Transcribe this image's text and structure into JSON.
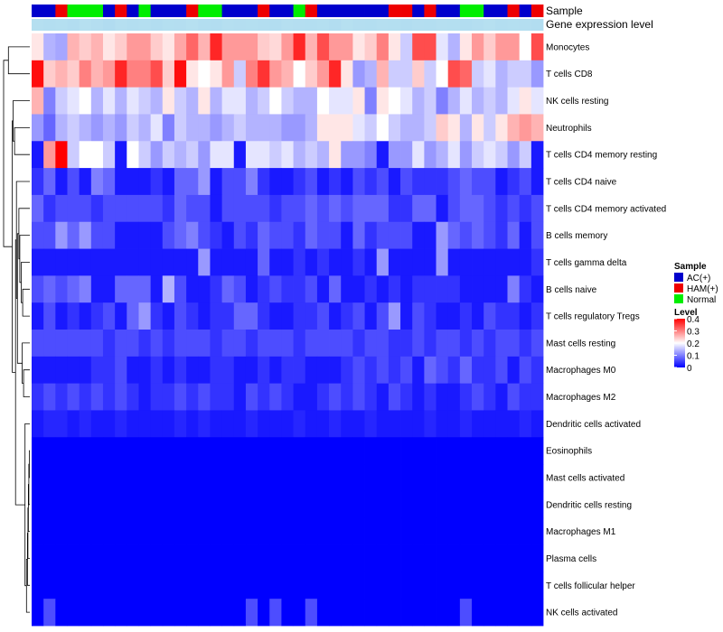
{
  "chart_data": {
    "type": "heatmap",
    "title": "",
    "annotations": {
      "sample_label": "Sample",
      "gene_expression_label": "Gene expression level",
      "sample_groups": [
        "AC",
        "AC",
        "HAM",
        "Normal",
        "Normal",
        "Normal",
        "AC",
        "HAM",
        "AC",
        "Normal",
        "AC",
        "AC",
        "AC",
        "HAM",
        "Normal",
        "Normal",
        "AC",
        "AC",
        "AC",
        "HAM",
        "AC",
        "AC",
        "Normal",
        "HAM",
        "AC",
        "AC",
        "AC",
        "AC",
        "AC",
        "AC",
        "HAM",
        "HAM",
        "AC",
        "HAM",
        "AC",
        "AC",
        "Normal",
        "Normal",
        "AC",
        "AC",
        "HAM",
        "AC",
        "HAM"
      ]
    },
    "legend": {
      "sample_title": "Sample",
      "sample_entries": [
        {
          "label": "AC(+)",
          "color": "#0000cc"
        },
        {
          "label": "HAM(+)",
          "color": "#ee0000"
        },
        {
          "label": "Normal",
          "color": "#00ee00"
        }
      ],
      "level_title": "Level",
      "level_ticks": [
        "0.4",
        "0.3",
        "0.2",
        "0.1",
        "0"
      ],
      "level_range": [
        0,
        0.4
      ],
      "colors": {
        "low": "#0000ff",
        "mid": "#ffffff",
        "high": "#ff0000"
      }
    },
    "rows": [
      "Monocytes",
      "T cells CD8",
      "NK cells resting",
      "Neutrophils",
      "T cells CD4 memory resting",
      "T cells CD4 naive",
      "T cells CD4 memory activated",
      "B cells memory",
      "T cells gamma delta",
      "B cells naive",
      "T cells regulatory  Tregs",
      "Mast cells resting",
      "Macrophages M0",
      "Macrophages M2",
      "Dendritic cells activated",
      "Eosinophils",
      "Mast cells activated",
      "Dendritic cells resting",
      "Macrophages M1",
      "Plasma cells",
      "T cells follicular helper",
      "NK cells activated"
    ],
    "values": [
      [
        0.22,
        0.14,
        0.13,
        0.26,
        0.24,
        0.26,
        0.22,
        0.24,
        0.28,
        0.28,
        0.24,
        0.22,
        0.27,
        0.32,
        0.26,
        0.37,
        0.28,
        0.28,
        0.28,
        0.24,
        0.23,
        0.28,
        0.37,
        0.26,
        0.34,
        0.28,
        0.28,
        0.22,
        0.24,
        0.3,
        0.22,
        0.16,
        0.34,
        0.34,
        0.18,
        0.14,
        0.22,
        0.28,
        0.24,
        0.28,
        0.28,
        0.2,
        0.34
      ],
      [
        0.39,
        0.24,
        0.26,
        0.24,
        0.3,
        0.26,
        0.28,
        0.37,
        0.3,
        0.3,
        0.34,
        0.24,
        0.39,
        0.22,
        0.2,
        0.22,
        0.28,
        0.16,
        0.3,
        0.36,
        0.28,
        0.26,
        0.2,
        0.24,
        0.28,
        0.37,
        0.22,
        0.12,
        0.14,
        0.26,
        0.16,
        0.16,
        0.24,
        0.16,
        0.2,
        0.34,
        0.32,
        0.16,
        0.18,
        0.14,
        0.16,
        0.16,
        0.12
      ],
      [
        0.26,
        0.1,
        0.16,
        0.18,
        0.2,
        0.14,
        0.18,
        0.14,
        0.18,
        0.16,
        0.14,
        0.22,
        0.16,
        0.14,
        0.22,
        0.14,
        0.18,
        0.18,
        0.14,
        0.16,
        0.2,
        0.16,
        0.14,
        0.14,
        0.2,
        0.18,
        0.18,
        0.22,
        0.1,
        0.22,
        0.2,
        0.18,
        0.14,
        0.16,
        0.1,
        0.14,
        0.18,
        0.14,
        0.16,
        0.14,
        0.18,
        0.22,
        0.18
      ],
      [
        0.12,
        0.08,
        0.14,
        0.16,
        0.14,
        0.12,
        0.14,
        0.12,
        0.16,
        0.14,
        0.18,
        0.1,
        0.16,
        0.14,
        0.14,
        0.12,
        0.14,
        0.16,
        0.14,
        0.14,
        0.14,
        0.12,
        0.12,
        0.14,
        0.22,
        0.22,
        0.22,
        0.18,
        0.16,
        0.2,
        0.16,
        0.14,
        0.14,
        0.16,
        0.24,
        0.22,
        0.14,
        0.22,
        0.16,
        0.22,
        0.26,
        0.28,
        0.26
      ],
      [
        0.02,
        0.28,
        0.4,
        0.16,
        0.2,
        0.2,
        0.16,
        0.02,
        0.2,
        0.16,
        0.12,
        0.16,
        0.14,
        0.16,
        0.12,
        0.18,
        0.18,
        0.02,
        0.18,
        0.18,
        0.16,
        0.18,
        0.14,
        0.16,
        0.14,
        0.22,
        0.12,
        0.12,
        0.1,
        0.02,
        0.12,
        0.12,
        0.18,
        0.12,
        0.14,
        0.18,
        0.12,
        0.16,
        0.18,
        0.16,
        0.12,
        0.16,
        0.02
      ],
      [
        0.04,
        0.08,
        0.02,
        0.06,
        0.02,
        0.1,
        0.08,
        0.02,
        0.02,
        0.02,
        0.04,
        0.02,
        0.08,
        0.08,
        0.12,
        0.02,
        0.06,
        0.06,
        0.1,
        0.04,
        0.02,
        0.02,
        0.04,
        0.06,
        0.02,
        0.04,
        0.02,
        0.06,
        0.04,
        0.06,
        0.02,
        0.06,
        0.04,
        0.04,
        0.04,
        0.06,
        0.08,
        0.06,
        0.06,
        0.02,
        0.04,
        0.06,
        0.02
      ],
      [
        0.08,
        0.04,
        0.06,
        0.06,
        0.06,
        0.04,
        0.06,
        0.06,
        0.06,
        0.06,
        0.06,
        0.04,
        0.08,
        0.06,
        0.06,
        0.02,
        0.06,
        0.06,
        0.06,
        0.06,
        0.04,
        0.06,
        0.06,
        0.08,
        0.06,
        0.08,
        0.06,
        0.08,
        0.08,
        0.08,
        0.04,
        0.04,
        0.08,
        0.08,
        0.02,
        0.06,
        0.08,
        0.08,
        0.06,
        0.04,
        0.06,
        0.04,
        0.06
      ],
      [
        0.06,
        0.06,
        0.12,
        0.08,
        0.12,
        0.06,
        0.06,
        0.02,
        0.02,
        0.02,
        0.02,
        0.06,
        0.08,
        0.1,
        0.06,
        0.04,
        0.02,
        0.06,
        0.04,
        0.08,
        0.06,
        0.06,
        0.04,
        0.08,
        0.06,
        0.06,
        0.02,
        0.08,
        0.04,
        0.06,
        0.06,
        0.06,
        0.02,
        0.02,
        0.12,
        0.08,
        0.06,
        0.08,
        0.06,
        0.04,
        0.08,
        0.02,
        0.06
      ],
      [
        0.02,
        0.02,
        0.02,
        0.02,
        0.02,
        0.02,
        0.02,
        0.02,
        0.02,
        0.02,
        0.02,
        0.02,
        0.02,
        0.02,
        0.12,
        0.02,
        0.02,
        0.02,
        0.02,
        0.08,
        0.02,
        0.02,
        0.04,
        0.02,
        0.04,
        0.02,
        0.02,
        0.04,
        0.02,
        0.12,
        0.02,
        0.02,
        0.02,
        0.02,
        0.12,
        0.02,
        0.02,
        0.02,
        0.02,
        0.02,
        0.02,
        0.02,
        0.04
      ],
      [
        0.06,
        0.08,
        0.06,
        0.08,
        0.1,
        0.02,
        0.02,
        0.08,
        0.08,
        0.08,
        0.02,
        0.14,
        0.06,
        0.02,
        0.02,
        0.04,
        0.08,
        0.06,
        0.02,
        0.04,
        0.06,
        0.04,
        0.04,
        0.06,
        0.02,
        0.08,
        0.02,
        0.02,
        0.04,
        0.02,
        0.04,
        0.02,
        0.04,
        0.04,
        0.04,
        0.04,
        0.02,
        0.02,
        0.02,
        0.02,
        0.1,
        0.04,
        0.02
      ],
      [
        0.02,
        0.06,
        0.02,
        0.04,
        0.02,
        0.04,
        0.06,
        0.02,
        0.08,
        0.12,
        0.04,
        0.02,
        0.06,
        0.04,
        0.02,
        0.04,
        0.04,
        0.08,
        0.08,
        0.04,
        0.02,
        0.02,
        0.04,
        0.04,
        0.06,
        0.02,
        0.04,
        0.06,
        0.02,
        0.06,
        0.12,
        0.02,
        0.06,
        0.04,
        0.02,
        0.02,
        0.04,
        0.02,
        0.06,
        0.04,
        0.04,
        0.02,
        0.04
      ],
      [
        0.06,
        0.06,
        0.06,
        0.06,
        0.06,
        0.06,
        0.04,
        0.06,
        0.06,
        0.04,
        0.06,
        0.04,
        0.06,
        0.06,
        0.06,
        0.04,
        0.06,
        0.06,
        0.04,
        0.06,
        0.06,
        0.06,
        0.04,
        0.06,
        0.06,
        0.06,
        0.06,
        0.04,
        0.06,
        0.06,
        0.04,
        0.04,
        0.06,
        0.04,
        0.06,
        0.06,
        0.04,
        0.06,
        0.04,
        0.06,
        0.06,
        0.04,
        0.06
      ],
      [
        0.02,
        0.02,
        0.02,
        0.02,
        0.02,
        0.04,
        0.04,
        0.06,
        0.02,
        0.02,
        0.04,
        0.02,
        0.04,
        0.02,
        0.02,
        0.04,
        0.04,
        0.02,
        0.02,
        0.04,
        0.02,
        0.04,
        0.04,
        0.02,
        0.02,
        0.02,
        0.04,
        0.06,
        0.04,
        0.06,
        0.04,
        0.06,
        0.02,
        0.08,
        0.06,
        0.04,
        0.08,
        0.04,
        0.04,
        0.06,
        0.02,
        0.06,
        0.04
      ],
      [
        0.04,
        0.06,
        0.04,
        0.06,
        0.04,
        0.06,
        0.04,
        0.06,
        0.04,
        0.02,
        0.04,
        0.04,
        0.06,
        0.04,
        0.06,
        0.04,
        0.04,
        0.02,
        0.06,
        0.04,
        0.06,
        0.04,
        0.02,
        0.02,
        0.04,
        0.06,
        0.04,
        0.06,
        0.04,
        0.02,
        0.06,
        0.04,
        0.02,
        0.04,
        0.02,
        0.02,
        0.04,
        0.06,
        0.04,
        0.02,
        0.06,
        0.04,
        0.04
      ],
      [
        0.02,
        0.03,
        0.03,
        0.02,
        0.03,
        0.02,
        0.02,
        0.03,
        0.02,
        0.02,
        0.02,
        0.02,
        0.03,
        0.02,
        0.03,
        0.02,
        0.02,
        0.02,
        0.03,
        0.02,
        0.02,
        0.02,
        0.03,
        0.02,
        0.02,
        0.03,
        0.02,
        0.02,
        0.03,
        0.02,
        0.02,
        0.02,
        0.02,
        0.03,
        0.02,
        0.02,
        0.03,
        0.02,
        0.02,
        0.02,
        0.02,
        0.03,
        0.02
      ],
      [
        0,
        0,
        0,
        0,
        0,
        0,
        0,
        0,
        0,
        0,
        0,
        0,
        0,
        0,
        0,
        0,
        0,
        0,
        0,
        0,
        0,
        0,
        0,
        0,
        0,
        0,
        0,
        0,
        0,
        0,
        0,
        0,
        0,
        0,
        0,
        0,
        0,
        0,
        0,
        0,
        0,
        0,
        0
      ],
      [
        0,
        0,
        0,
        0,
        0,
        0,
        0,
        0,
        0,
        0,
        0,
        0,
        0,
        0,
        0,
        0,
        0,
        0,
        0,
        0,
        0,
        0,
        0,
        0,
        0,
        0,
        0,
        0,
        0,
        0,
        0,
        0,
        0,
        0,
        0,
        0,
        0,
        0,
        0,
        0,
        0,
        0,
        0
      ],
      [
        0,
        0,
        0,
        0,
        0,
        0,
        0,
        0,
        0,
        0,
        0,
        0,
        0,
        0,
        0,
        0,
        0,
        0,
        0,
        0,
        0,
        0,
        0,
        0,
        0,
        0,
        0,
        0,
        0,
        0,
        0,
        0,
        0,
        0,
        0,
        0,
        0,
        0,
        0,
        0,
        0,
        0,
        0
      ],
      [
        0,
        0,
        0,
        0,
        0,
        0,
        0,
        0,
        0,
        0,
        0,
        0,
        0,
        0,
        0,
        0,
        0,
        0,
        0,
        0,
        0,
        0,
        0,
        0,
        0,
        0,
        0,
        0,
        0,
        0,
        0,
        0,
        0,
        0,
        0,
        0,
        0,
        0,
        0,
        0,
        0,
        0,
        0
      ],
      [
        0,
        0,
        0,
        0,
        0,
        0,
        0,
        0,
        0,
        0,
        0,
        0,
        0,
        0,
        0,
        0,
        0,
        0,
        0,
        0,
        0,
        0,
        0,
        0,
        0,
        0,
        0,
        0,
        0,
        0,
        0,
        0,
        0,
        0,
        0,
        0,
        0,
        0,
        0,
        0,
        0,
        0,
        0
      ],
      [
        0,
        0,
        0,
        0,
        0,
        0,
        0,
        0,
        0,
        0,
        0,
        0,
        0,
        0,
        0,
        0,
        0,
        0,
        0,
        0,
        0,
        0,
        0,
        0,
        0,
        0,
        0,
        0,
        0,
        0,
        0,
        0,
        0,
        0,
        0,
        0,
        0,
        0,
        0,
        0,
        0,
        0,
        0
      ],
      [
        0,
        0.06,
        0,
        0,
        0,
        0,
        0,
        0,
        0,
        0,
        0,
        0,
        0,
        0,
        0,
        0,
        0,
        0,
        0.06,
        0,
        0.06,
        0,
        0,
        0.06,
        0,
        0,
        0,
        0,
        0,
        0,
        0,
        0,
        0,
        0,
        0,
        0,
        0.06,
        0,
        0,
        0,
        0,
        0,
        0
      ]
    ],
    "gene_expression_levels": [
      0.78,
      0.72,
      0.76,
      0.7,
      0.8,
      0.74,
      0.68,
      0.78,
      0.72,
      0.75,
      0.7,
      0.76,
      0.74,
      0.8,
      0.72,
      0.7,
      0.78,
      0.74,
      0.76,
      0.72,
      0.7,
      0.78,
      0.74,
      0.72,
      0.76,
      0.7,
      0.8,
      0.74,
      0.72,
      0.78,
      0.76,
      0.7,
      0.74,
      0.72,
      0.78,
      0.76,
      0.7,
      0.74,
      0.8,
      0.72,
      0.76,
      0.74,
      0.7
    ],
    "row_dendrogram": {
      "merges": [
        [
          -16,
          -17
        ],
        [
          -18,
          1
        ],
        [
          -19,
          2
        ],
        [
          -20,
          3
        ],
        [
          -21,
          4
        ],
        [
          -22,
          5
        ],
        [
          -15,
          6
        ],
        [
          -13,
          -14
        ],
        [
          -12,
          8
        ],
        [
          -10,
          -11
        ],
        [
          -9,
          10
        ],
        [
          -8,
          11
        ],
        [
          -7,
          12
        ],
        [
          9,
          13
        ],
        [
          -6,
          14
        ],
        [
          7,
          15
        ],
        [
          -4,
          -5
        ],
        [
          -3,
          17
        ],
        [
          16,
          18
        ],
        [
          -1,
          -2
        ],
        [
          19,
          20
        ]
      ],
      "heights": [
        0.1,
        0.2,
        0.3,
        0.4,
        0.5,
        0.7,
        1.0,
        1.3,
        1.6,
        1.5,
        1.8,
        2.1,
        2.3,
        2.6,
        2.8,
        3.0,
        3.2,
        3.5,
        3.7,
        4.5,
        5.5
      ]
    }
  }
}
